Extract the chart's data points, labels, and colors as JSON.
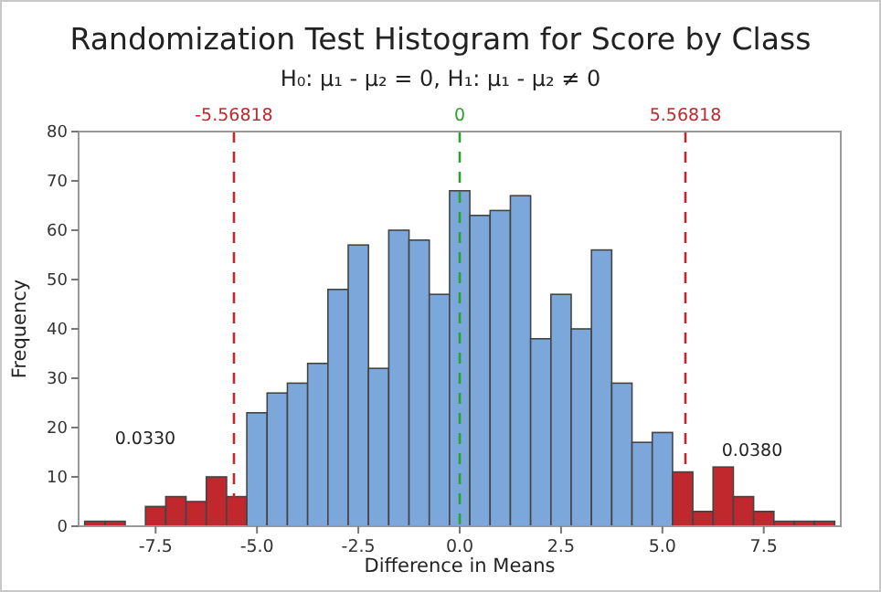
{
  "chart_data": {
    "type": "histogram",
    "title": "Randomization Test Histogram for Score by Class",
    "subtitle": "H₀: μ₁ - μ₂ = 0, H₁: μ₁ - μ₂ ≠ 0",
    "xlabel": "Difference in Means",
    "ylabel": "Frequency",
    "bins": [
      -9.25,
      -8.75,
      -8.25,
      -7.75,
      -7.25,
      -6.75,
      -6.25,
      -5.75,
      -5.25,
      -4.75,
      -4.25,
      -3.75,
      -3.25,
      -2.75,
      -2.25,
      -1.75,
      -1.25,
      -0.75,
      -0.25,
      0.25,
      0.75,
      1.25,
      1.75,
      2.25,
      2.75,
      3.25,
      3.75,
      4.25,
      4.75,
      5.25,
      5.75,
      6.25,
      6.75,
      7.25,
      7.75,
      8.25,
      8.75,
      9.25
    ],
    "values": [
      1,
      1,
      0,
      4,
      6,
      5,
      10,
      6,
      23,
      27,
      29,
      33,
      48,
      57,
      32,
      60,
      58,
      47,
      68,
      63,
      64,
      67,
      38,
      47,
      40,
      56,
      29,
      17,
      19,
      11,
      3,
      12,
      6,
      3,
      1,
      1,
      1
    ],
    "colors": [
      "#c0282d",
      "#c0282d",
      "#c0282d",
      "#c0282d",
      "#c0282d",
      "#c0282d",
      "#c0282d",
      "#c0282d",
      "#7ba7db",
      "#7ba7db",
      "#7ba7db",
      "#7ba7db",
      "#7ba7db",
      "#7ba7db",
      "#7ba7db",
      "#7ba7db",
      "#7ba7db",
      "#7ba7db",
      "#7ba7db",
      "#7ba7db",
      "#7ba7db",
      "#7ba7db",
      "#7ba7db",
      "#7ba7db",
      "#7ba7db",
      "#7ba7db",
      "#7ba7db",
      "#7ba7db",
      "#7ba7db",
      "#c0282d",
      "#c0282d",
      "#c0282d",
      "#c0282d",
      "#c0282d",
      "#c0282d",
      "#c0282d",
      "#c0282d"
    ],
    "xlim": [
      -9.4,
      9.4
    ],
    "ylim": [
      0,
      80
    ],
    "xticks": [
      {
        "value": -7.5,
        "label": "-7.5"
      },
      {
        "value": -5,
        "label": "-5.0"
      },
      {
        "value": -2.5,
        "label": "-2.5"
      },
      {
        "value": 0,
        "label": "0.0"
      },
      {
        "value": 2.5,
        "label": "2.5"
      },
      {
        "value": 5,
        "label": "5.0"
      },
      {
        "value": 7.5,
        "label": "7.5"
      }
    ],
    "yticks": [
      0,
      10,
      20,
      30,
      40,
      50,
      60,
      70,
      80
    ],
    "ref_lines": [
      {
        "axis": "x",
        "value": -5.56818,
        "label": "-5.56818",
        "color": "#c0282d",
        "line_style": "dashed"
      },
      {
        "axis": "x",
        "value": 0,
        "label": "0",
        "color": "#2ca02c",
        "line_style": "dashed"
      },
      {
        "axis": "x",
        "value": 5.56818,
        "label": "5.56818",
        "color": "#c0282d",
        "line_style": "dashed"
      }
    ],
    "annotations": [
      "0.0330",
      "0.0380"
    ],
    "grid": false
  }
}
